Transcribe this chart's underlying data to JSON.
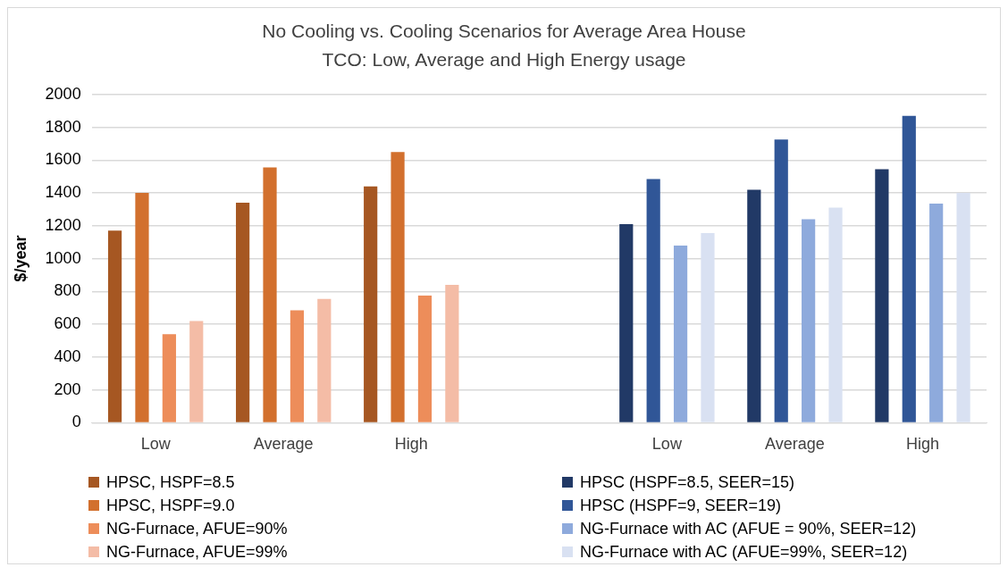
{
  "chart_data": {
    "type": "bar",
    "title": "No Cooling vs. Cooling Scenarios for Average Area House TCO: Low, Average and High Energy usage",
    "ylabel": "$/year",
    "categories": [
      "Low",
      "Average",
      "High",
      null,
      "Low",
      "Average",
      "High"
    ],
    "series": [
      {
        "name": "HPSC, HSPF=8.5",
        "color": "#a65722",
        "values": [
          1170,
          1340,
          1440,
          null,
          null,
          null,
          null
        ]
      },
      {
        "name": "HPSC, HSPF=9.0",
        "color": "#d2702e",
        "values": [
          1400,
          1555,
          1650,
          null,
          null,
          null,
          null
        ]
      },
      {
        "name": "NG-Furnace, AFUE=90%",
        "color": "#ed8d5a",
        "values": [
          540,
          685,
          775,
          null,
          null,
          null,
          null
        ]
      },
      {
        "name": "NG-Furnace, AFUE=99%",
        "color": "#f4bca6",
        "values": [
          620,
          755,
          840,
          null,
          null,
          null,
          null
        ]
      },
      {
        "name": "HPSC (HSPF=8.5, SEER=15)",
        "color": "#213966",
        "values": [
          null,
          null,
          null,
          null,
          1210,
          1420,
          1545
        ]
      },
      {
        "name": "HPSC (HSPF=9, SEER=19)",
        "color": "#305697",
        "values": [
          null,
          null,
          null,
          null,
          1485,
          1725,
          1870
        ]
      },
      {
        "name": "NG-Furnace with AC (AFUE = 90%, SEER=12)",
        "color": "#8eaadc",
        "values": [
          null,
          null,
          null,
          null,
          1080,
          1240,
          1335
        ]
      },
      {
        "name": "NG-Furnace with AC (AFUE=99%, SEER=12)",
        "color": "#d9e1f2",
        "values": [
          null,
          null,
          null,
          null,
          1155,
          1310,
          1400
        ]
      }
    ],
    "ylim": [
      0,
      2000
    ],
    "yticks": [
      0,
      200,
      400,
      600,
      800,
      1000,
      1200,
      1400,
      1600,
      1800,
      2000
    ],
    "grid": "y",
    "legend": "bottom"
  }
}
